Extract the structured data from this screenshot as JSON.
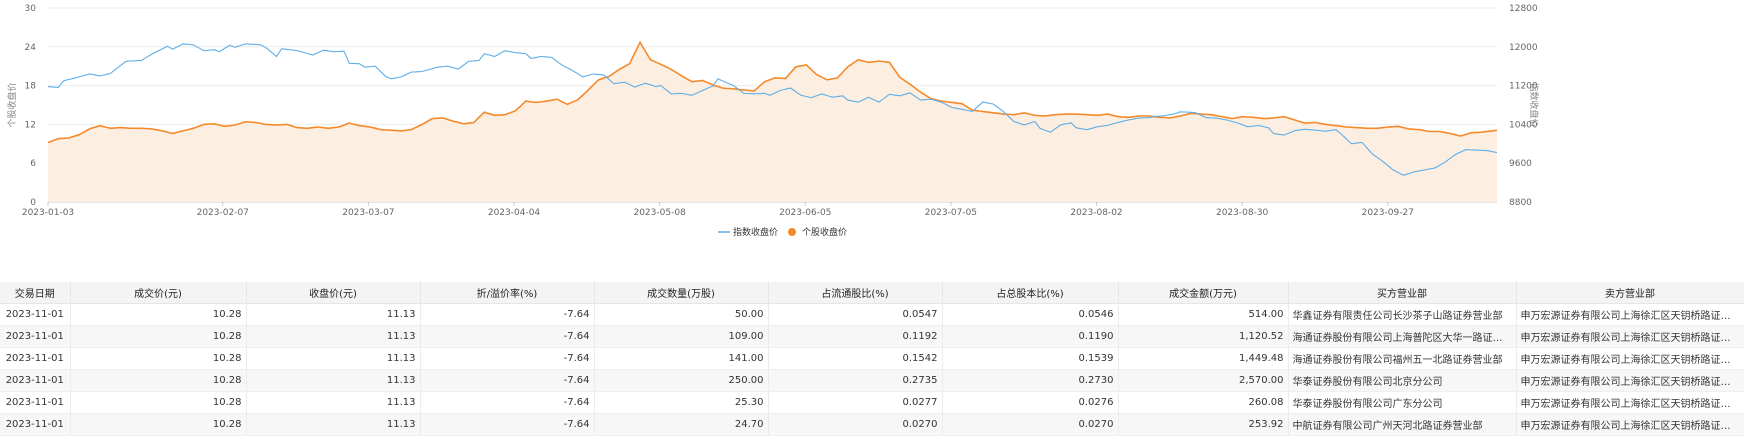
{
  "chart_data": {
    "type": "line",
    "x_ticks": [
      "2023-01-03",
      "2023-02-07",
      "2023-03-07",
      "2023-04-04",
      "2023-05-08",
      "2023-06-05",
      "2023-07-05",
      "2023-08-02",
      "2023-08-30",
      "2023-09-27"
    ],
    "x_tick_index": [
      0,
      24,
      44,
      64,
      84,
      104,
      124,
      144,
      164,
      184
    ],
    "n_points": 200,
    "y_left": {
      "label": "个股收盘价",
      "ticks": [
        0,
        6,
        12,
        18,
        24,
        30
      ],
      "range": [
        0,
        30
      ]
    },
    "y_right": {
      "label": "指数收盘价",
      "ticks": [
        8800,
        9600,
        10400,
        11200,
        12000,
        12800
      ],
      "range": [
        8800,
        12800
      ]
    },
    "grid": true,
    "legend_position": "bottom-center",
    "series": [
      {
        "name": "指数收盘价",
        "axis": "right",
        "color": "#5eaee8",
        "style": "line",
        "keypoints": [
          [
            0,
            11180
          ],
          [
            2,
            11160
          ],
          [
            3,
            11300
          ],
          [
            5,
            11350
          ],
          [
            8,
            11440
          ],
          [
            10,
            11400
          ],
          [
            12,
            11450
          ],
          [
            15,
            11700
          ],
          [
            18,
            11720
          ],
          [
            20,
            11850
          ],
          [
            23,
            12010
          ],
          [
            24,
            11950
          ],
          [
            26,
            12060
          ],
          [
            28,
            12040
          ],
          [
            30,
            11920
          ],
          [
            32,
            11940
          ],
          [
            33,
            11900
          ],
          [
            35,
            12030
          ],
          [
            36,
            11990
          ],
          [
            38,
            12060
          ],
          [
            41,
            12040
          ],
          [
            42,
            11980
          ],
          [
            44,
            11800
          ],
          [
            45,
            11960
          ],
          [
            48,
            11920
          ],
          [
            51,
            11830
          ],
          [
            53,
            11930
          ],
          [
            55,
            11900
          ],
          [
            57,
            11910
          ],
          [
            58,
            11660
          ],
          [
            60,
            11650
          ],
          [
            61,
            11580
          ],
          [
            63,
            11600
          ],
          [
            65,
            11390
          ],
          [
            66,
            11340
          ],
          [
            68,
            11380
          ],
          [
            70,
            11480
          ],
          [
            72,
            11490
          ],
          [
            75,
            11580
          ],
          [
            77,
            11600
          ],
          [
            79,
            11540
          ],
          [
            81,
            11700
          ],
          [
            83,
            11720
          ],
          [
            84,
            11860
          ],
          [
            86,
            11800
          ],
          [
            88,
            11920
          ],
          [
            90,
            11880
          ],
          [
            92,
            11860
          ],
          [
            93,
            11760
          ],
          [
            95,
            11800
          ],
          [
            97,
            11780
          ],
          [
            99,
            11620
          ],
          [
            101,
            11510
          ],
          [
            103,
            11380
          ],
          [
            105,
            11440
          ],
          [
            107,
            11420
          ],
          [
            109,
            11240
          ],
          [
            111,
            11270
          ],
          [
            113,
            11170
          ],
          [
            115,
            11250
          ],
          [
            117,
            11180
          ],
          [
            118,
            11200
          ],
          [
            120,
            11030
          ],
          [
            122,
            11040
          ],
          [
            124,
            11000
          ],
          [
            126,
            11100
          ],
          [
            128,
            11190
          ],
          [
            129,
            11340
          ],
          [
            130,
            11290
          ],
          [
            132,
            11200
          ],
          [
            134,
            11040
          ],
          [
            136,
            11030
          ],
          [
            138,
            11040
          ],
          [
            139,
            11000
          ],
          [
            141,
            11100
          ],
          [
            143,
            11150
          ],
          [
            145,
            11000
          ],
          [
            147,
            10950
          ],
          [
            149,
            11030
          ],
          [
            151,
            10960
          ],
          [
            153,
            10990
          ],
          [
            154,
            10900
          ],
          [
            156,
            10860
          ],
          [
            158,
            10960
          ],
          [
            160,
            10860
          ],
          [
            162,
            11020
          ],
          [
            164,
            10990
          ],
          [
            166,
            11050
          ],
          [
            168,
            10900
          ],
          [
            170,
            10920
          ],
          [
            172,
            10860
          ],
          [
            174,
            10750
          ],
          [
            176,
            10710
          ],
          [
            178,
            10670
          ],
          [
            180,
            10860
          ],
          [
            182,
            10820
          ],
          [
            184,
            10660
          ],
          [
            186,
            10460
          ],
          [
            188,
            10390
          ],
          [
            190,
            10460
          ],
          [
            191,
            10320
          ],
          [
            193,
            10240
          ],
          [
            195,
            10390
          ],
          [
            197,
            10430
          ],
          [
            198,
            10330
          ],
          [
            200,
            10290
          ],
          [
            202,
            10350
          ],
          [
            204,
            10380
          ],
          [
            206,
            10440
          ],
          [
            208,
            10490
          ],
          [
            210,
            10530
          ],
          [
            212,
            10540
          ],
          [
            213,
            10560
          ],
          [
            215,
            10580
          ],
          [
            217,
            10620
          ],
          [
            218,
            10660
          ],
          [
            220,
            10650
          ],
          [
            221,
            10640
          ],
          [
            223,
            10540
          ],
          [
            225,
            10530
          ],
          [
            227,
            10490
          ],
          [
            229,
            10430
          ],
          [
            231,
            10350
          ],
          [
            233,
            10380
          ],
          [
            235,
            10330
          ],
          [
            236,
            10210
          ],
          [
            238,
            10180
          ],
          [
            240,
            10270
          ],
          [
            242,
            10300
          ],
          [
            244,
            10280
          ],
          [
            246,
            10260
          ],
          [
            248,
            10290
          ],
          [
            249,
            10200
          ],
          [
            251,
            10000
          ],
          [
            253,
            10030
          ],
          [
            255,
            9790
          ],
          [
            257,
            9640
          ],
          [
            259,
            9460
          ],
          [
            261,
            9350
          ],
          [
            263,
            9420
          ],
          [
            265,
            9460
          ],
          [
            267,
            9500
          ],
          [
            269,
            9620
          ],
          [
            271,
            9780
          ],
          [
            273,
            9880
          ],
          [
            275,
            9870
          ],
          [
            277,
            9860
          ],
          [
            279,
            9820
          ]
        ]
      },
      {
        "name": "个股收盘价",
        "axis": "left",
        "color": "#f58a2a",
        "fill": "#fdebdd",
        "style": "area",
        "keypoints": [
          [
            0,
            9.2
          ],
          [
            2,
            9.8
          ],
          [
            4,
            9.9
          ],
          [
            6,
            10.4
          ],
          [
            8,
            11.3
          ],
          [
            10,
            11.8
          ],
          [
            12,
            11.4
          ],
          [
            14,
            11.5
          ],
          [
            16,
            11.4
          ],
          [
            18,
            11.4
          ],
          [
            20,
            11.3
          ],
          [
            22,
            11.0
          ],
          [
            24,
            10.6
          ],
          [
            26,
            11.0
          ],
          [
            28,
            11.4
          ],
          [
            30,
            12.0
          ],
          [
            32,
            12.1
          ],
          [
            34,
            11.7
          ],
          [
            36,
            11.9
          ],
          [
            38,
            12.4
          ],
          [
            40,
            12.3
          ],
          [
            42,
            12.0
          ],
          [
            44,
            11.9
          ],
          [
            46,
            12.0
          ],
          [
            48,
            11.5
          ],
          [
            50,
            11.4
          ],
          [
            52,
            11.6
          ],
          [
            54,
            11.4
          ],
          [
            56,
            11.6
          ],
          [
            58,
            12.2
          ],
          [
            60,
            11.8
          ],
          [
            62,
            11.6
          ],
          [
            64,
            11.2
          ],
          [
            66,
            11.1
          ],
          [
            68,
            11.0
          ],
          [
            70,
            11.2
          ],
          [
            72,
            12.0
          ],
          [
            74,
            12.9
          ],
          [
            76,
            13.0
          ],
          [
            78,
            12.5
          ],
          [
            80,
            12.1
          ],
          [
            82,
            12.3
          ],
          [
            84,
            13.9
          ],
          [
            86,
            13.4
          ],
          [
            88,
            13.5
          ],
          [
            90,
            14.1
          ],
          [
            92,
            15.6
          ],
          [
            94,
            15.4
          ],
          [
            96,
            15.6
          ],
          [
            98,
            15.9
          ],
          [
            100,
            15.1
          ],
          [
            102,
            15.8
          ],
          [
            104,
            17.3
          ],
          [
            106,
            18.9
          ],
          [
            108,
            19.4
          ],
          [
            110,
            20.5
          ],
          [
            112,
            21.4
          ],
          [
            114,
            24.7
          ],
          [
            116,
            22.0
          ],
          [
            118,
            21.3
          ],
          [
            120,
            20.5
          ],
          [
            122,
            19.5
          ],
          [
            124,
            18.6
          ],
          [
            126,
            18.8
          ],
          [
            128,
            18.1
          ],
          [
            130,
            17.6
          ],
          [
            132,
            17.5
          ],
          [
            134,
            17.3
          ],
          [
            136,
            17.2
          ],
          [
            138,
            18.6
          ],
          [
            140,
            19.2
          ],
          [
            142,
            19.1
          ],
          [
            144,
            20.9
          ],
          [
            146,
            21.2
          ],
          [
            148,
            19.7
          ],
          [
            150,
            18.9
          ],
          [
            152,
            19.2
          ],
          [
            154,
            20.9
          ],
          [
            156,
            22.0
          ],
          [
            158,
            21.6
          ],
          [
            160,
            21.8
          ],
          [
            162,
            21.6
          ],
          [
            164,
            19.3
          ],
          [
            166,
            18.2
          ],
          [
            168,
            17.0
          ],
          [
            170,
            16.0
          ],
          [
            172,
            15.6
          ],
          [
            174,
            15.4
          ],
          [
            176,
            15.2
          ],
          [
            178,
            14.2
          ],
          [
            180,
            14.0
          ],
          [
            182,
            13.8
          ],
          [
            184,
            13.6
          ],
          [
            186,
            13.5
          ],
          [
            188,
            13.8
          ],
          [
            190,
            13.4
          ],
          [
            192,
            13.3
          ],
          [
            194,
            13.5
          ],
          [
            196,
            13.6
          ],
          [
            198,
            13.6
          ],
          [
            200,
            13.5
          ],
          [
            202,
            13.4
          ],
          [
            204,
            13.6
          ],
          [
            206,
            13.2
          ],
          [
            208,
            13.1
          ],
          [
            210,
            13.3
          ],
          [
            212,
            13.3
          ],
          [
            214,
            13.1
          ],
          [
            216,
            13.0
          ],
          [
            218,
            13.3
          ],
          [
            220,
            13.7
          ],
          [
            222,
            13.6
          ],
          [
            224,
            13.5
          ],
          [
            226,
            13.2
          ],
          [
            228,
            12.9
          ],
          [
            230,
            13.2
          ],
          [
            232,
            13.1
          ],
          [
            234,
            12.9
          ],
          [
            236,
            13.0
          ],
          [
            238,
            13.2
          ],
          [
            240,
            12.7
          ],
          [
            242,
            12.2
          ],
          [
            244,
            12.3
          ],
          [
            246,
            12.0
          ],
          [
            248,
            11.8
          ],
          [
            250,
            11.6
          ],
          [
            252,
            11.5
          ],
          [
            254,
            11.4
          ],
          [
            256,
            11.4
          ],
          [
            258,
            11.6
          ],
          [
            260,
            11.7
          ],
          [
            262,
            11.3
          ],
          [
            264,
            11.2
          ],
          [
            266,
            10.9
          ],
          [
            268,
            10.9
          ],
          [
            270,
            10.6
          ],
          [
            272,
            10.2
          ],
          [
            274,
            10.7
          ],
          [
            276,
            10.8
          ],
          [
            278,
            11.0
          ],
          [
            279,
            11.1
          ]
        ]
      }
    ]
  },
  "table": {
    "columns": [
      "交易日期",
      "成交价(元)",
      "收盘价(元)",
      "折/溢价率(%)",
      "成交数量(万股)",
      "占流通股比(%)",
      "占总股本比(%)",
      "成交金额(万元)",
      "买方营业部",
      "卖方营业部"
    ],
    "rows": [
      [
        "2023-11-01",
        "10.28",
        "11.13",
        "-7.64",
        "50.00",
        "0.0547",
        "0.0546",
        "514.00",
        "华鑫证券有限责任公司长沙茶子山路证券营业部",
        "申万宏源证券有限公司上海徐汇区天钥桥路证券营业部"
      ],
      [
        "2023-11-01",
        "10.28",
        "11.13",
        "-7.64",
        "109.00",
        "0.1192",
        "0.1190",
        "1,120.52",
        "海通证券股份有限公司上海普陀区大华一路证券营业部",
        "申万宏源证券有限公司上海徐汇区天钥桥路证券营业部"
      ],
      [
        "2023-11-01",
        "10.28",
        "11.13",
        "-7.64",
        "141.00",
        "0.1542",
        "0.1539",
        "1,449.48",
        "海通证券股份有限公司福州五一北路证券营业部",
        "申万宏源证券有限公司上海徐汇区天钥桥路证券营业部"
      ],
      [
        "2023-11-01",
        "10.28",
        "11.13",
        "-7.64",
        "250.00",
        "0.2735",
        "0.2730",
        "2,570.00",
        "华泰证券股份有限公司北京分公司",
        "申万宏源证券有限公司上海徐汇区天钥桥路证券营业部"
      ],
      [
        "2023-11-01",
        "10.28",
        "11.13",
        "-7.64",
        "25.30",
        "0.0277",
        "0.0276",
        "260.08",
        "华泰证券股份有限公司广东分公司",
        "申万宏源证券有限公司上海徐汇区天钥桥路证券营业部"
      ],
      [
        "2023-11-01",
        "10.28",
        "11.13",
        "-7.64",
        "24.70",
        "0.0270",
        "0.0270",
        "253.92",
        "中航证券有限公司广州天河北路证券营业部",
        "申万宏源证券有限公司上海徐汇区天钥桥路证券营业部"
      ]
    ]
  }
}
